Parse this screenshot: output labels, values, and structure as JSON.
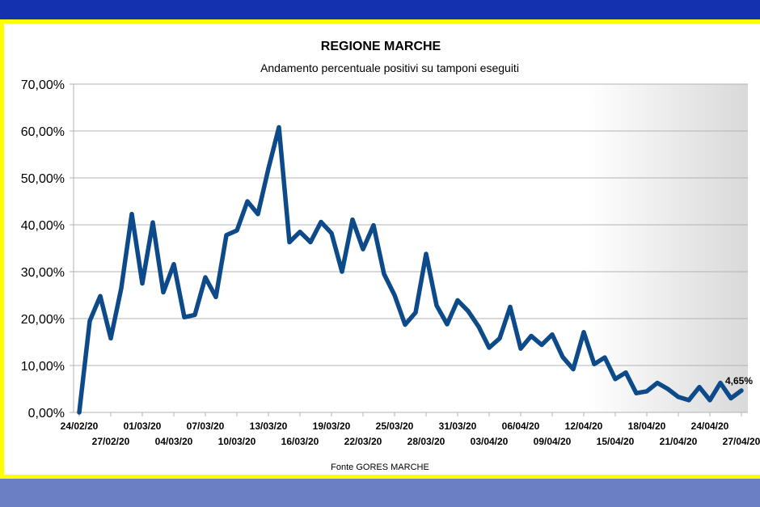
{
  "colors": {
    "top_band": "#1432ad",
    "bottom_band": "#6b7fc4",
    "frame_border": "#ffff00",
    "series_line": "#0d4a8a",
    "gridline": "#b3b3b3",
    "plot_shade": "#d9d9d9"
  },
  "chart_data": {
    "type": "line",
    "title": "REGIONE MARCHE",
    "subtitle": "Andamento percentuale positivi su tamponi eseguiti",
    "source": "Fonte GORES MARCHE",
    "ylim": [
      0,
      70
    ],
    "y_ticks": [
      "0,00%",
      "10,00%",
      "20,00%",
      "30,00%",
      "40,00%",
      "50,00%",
      "60,00%",
      "70,00%"
    ],
    "x_tick_labels": [
      "24/02/20",
      "27/02/20",
      "01/03/20",
      "04/03/20",
      "07/03/20",
      "10/03/20",
      "13/03/20",
      "16/03/20",
      "19/03/20",
      "22/03/20",
      "25/03/20",
      "28/03/20",
      "31/03/20",
      "03/04/20",
      "06/04/20",
      "09/04/20",
      "12/04/20",
      "15/04/20",
      "18/04/20",
      "21/04/20",
      "24/04/20",
      "27/04/20"
    ],
    "grid": true,
    "legend": false,
    "series": [
      {
        "x": [
          "24/02/20",
          "25/02/20",
          "26/02/20",
          "27/02/20",
          "28/02/20",
          "29/02/20",
          "01/03/20",
          "02/03/20",
          "03/03/20",
          "04/03/20",
          "05/03/20",
          "06/03/20",
          "07/03/20",
          "08/03/20",
          "09/03/20",
          "10/03/20",
          "11/03/20",
          "12/03/20",
          "13/03/20",
          "14/03/20",
          "15/03/20",
          "16/03/20",
          "17/03/20",
          "18/03/20",
          "19/03/20",
          "20/03/20",
          "21/03/20",
          "22/03/20",
          "23/03/20",
          "24/03/20",
          "25/03/20",
          "26/03/20",
          "27/03/20",
          "28/03/20",
          "29/03/20",
          "30/03/20",
          "31/03/20",
          "01/04/20",
          "02/04/20",
          "03/04/20",
          "04/04/20",
          "05/04/20",
          "06/04/20",
          "07/04/20",
          "08/04/20",
          "09/04/20",
          "10/04/20",
          "11/04/20",
          "12/04/20",
          "13/04/20",
          "14/04/20",
          "15/04/20",
          "16/04/20",
          "17/04/20",
          "18/04/20",
          "19/04/20",
          "20/04/20",
          "21/04/20",
          "22/04/20",
          "23/04/20",
          "24/04/20",
          "25/04/20",
          "26/04/20",
          "27/04/20"
        ],
        "values": [
          0,
          19.5,
          24.8,
          15.8,
          26.5,
          42.3,
          27.5,
          40.5,
          25.6,
          31.6,
          20.3,
          20.8,
          28.8,
          24.6,
          37.8,
          38.8,
          45.0,
          42.3,
          52.0,
          60.8,
          36.3,
          38.5,
          36.3,
          40.6,
          38.2,
          30.0,
          41.1,
          34.8,
          39.9,
          29.5,
          25.0,
          18.7,
          21.3,
          33.8,
          22.8,
          18.8,
          23.9,
          21.6,
          18.3,
          13.8,
          15.8,
          22.5,
          13.6,
          16.3,
          14.4,
          16.6,
          11.8,
          9.2,
          17.1,
          10.3,
          11.7,
          7.1,
          8.5,
          4.1,
          4.5,
          6.3,
          5.0,
          3.3,
          2.6,
          5.4,
          2.6,
          6.3,
          3.0,
          4.65
        ],
        "end_label": "4,65%"
      }
    ]
  }
}
